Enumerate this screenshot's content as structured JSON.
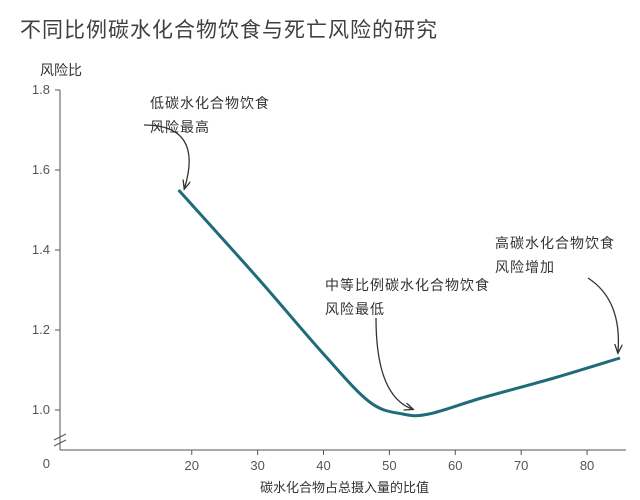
{
  "title": "不同比例碳水化合物饮食与死亡风险的研究",
  "title_fontsize": 21,
  "title_color": "#404040",
  "background_color": "#ffffff",
  "axis_color": "#555555",
  "tick_font_size": 13,
  "tick_color": "#555555",
  "label_color": "#333333",
  "ylabel": "风险比",
  "ylabel_fontsize": 14,
  "xlabel": "碳水化合物占总摄入量的比值",
  "xlabel_fontsize": 13,
  "chart": {
    "type": "line",
    "line_color": "#1e6b7a",
    "line_width": 3,
    "xlim": [
      0,
      85
    ],
    "ylim": [
      0.9,
      1.8
    ],
    "yticks": [
      1.0,
      1.2,
      1.4,
      1.6,
      1.8
    ],
    "xticks": [
      0,
      20,
      30,
      40,
      50,
      60,
      70,
      80
    ],
    "points": [
      {
        "x": 18,
        "y": 1.55
      },
      {
        "x": 30,
        "y": 1.33
      },
      {
        "x": 40,
        "y": 1.14
      },
      {
        "x": 47,
        "y": 1.02
      },
      {
        "x": 52,
        "y": 0.99
      },
      {
        "x": 56,
        "y": 0.99
      },
      {
        "x": 64,
        "y": 1.03
      },
      {
        "x": 75,
        "y": 1.08
      },
      {
        "x": 85,
        "y": 1.13
      }
    ]
  },
  "annotations": {
    "low": {
      "line1": "低碳水化合物饮食",
      "line2": "风险最高",
      "fontsize": 14
    },
    "mid": {
      "line1": "中等比例碳水化合物饮食",
      "line2": "风险最低",
      "fontsize": 14
    },
    "high": {
      "line1": "高碳水化合物饮食",
      "line2": "风险增加",
      "fontsize": 14
    }
  },
  "arrow_color": "#333333",
  "arrow_width": 1.3
}
